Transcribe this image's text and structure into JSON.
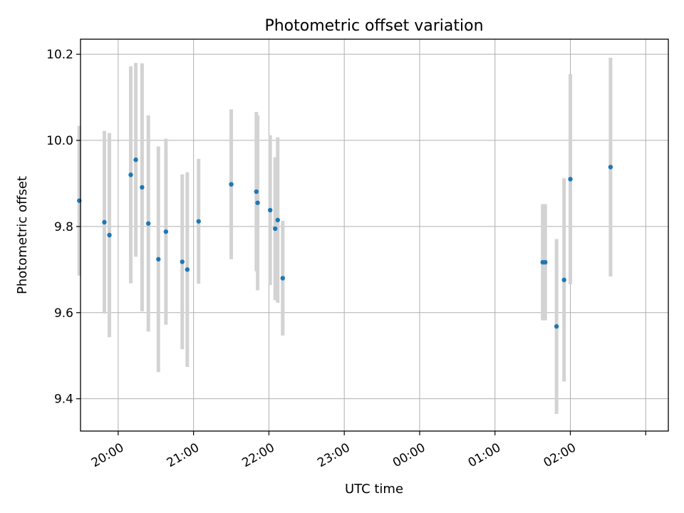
{
  "chart_data": {
    "type": "scatter",
    "title": "Photometric offset variation",
    "xlabel": "UTC time",
    "ylabel": "Photometric offset",
    "x_ticks": [
      "19:00",
      "20:00",
      "21:00",
      "22:00",
      "23:00",
      "00:00",
      "01:00",
      "02:00",
      "03:00"
    ],
    "x_tick_labels": [
      "20:00",
      "21:00",
      "22:00",
      "23:00",
      "00:00",
      "01:00",
      "02:00"
    ],
    "xlim": [
      "19:30",
      "03:18"
    ],
    "y_ticks": [
      9.4,
      9.6,
      9.8,
      10.0,
      10.2
    ],
    "y_tick_labels": [
      "9.4",
      "9.6",
      "9.8",
      "10.0",
      "10.2"
    ],
    "ylim": [
      9.325,
      10.235
    ],
    "grid": true,
    "colors": {
      "points": "#1f77b4",
      "errorbars": "#d3d3d3",
      "grid": "#b0b0b0"
    },
    "points": [
      {
        "t": "19:29:00",
        "y": 9.86,
        "yerr": 0.174
      },
      {
        "t": "19:49:00",
        "y": 9.81,
        "yerr": 0.212
      },
      {
        "t": "19:53:00",
        "y": 9.78,
        "yerr": 0.237
      },
      {
        "t": "20:10:00",
        "y": 9.92,
        "yerr": 0.252
      },
      {
        "t": "20:14:00",
        "y": 9.955,
        "yerr": 0.225
      },
      {
        "t": "20:19:00",
        "y": 9.891,
        "yerr": 0.288
      },
      {
        "t": "20:24:00",
        "y": 9.807,
        "yerr": 0.251
      },
      {
        "t": "20:32:00",
        "y": 9.724,
        "yerr": 0.262
      },
      {
        "t": "20:38:00",
        "y": 9.788,
        "yerr": 0.216
      },
      {
        "t": "20:51:00",
        "y": 9.718,
        "yerr": 0.203
      },
      {
        "t": "20:55:00",
        "y": 9.7,
        "yerr": 0.226
      },
      {
        "t": "21:04:00",
        "y": 9.812,
        "yerr": 0.145
      },
      {
        "t": "21:30:00",
        "y": 9.898,
        "yerr": 0.174
      },
      {
        "t": "21:50:00",
        "y": 9.881,
        "yerr": 0.185
      },
      {
        "t": "21:51:00",
        "y": 9.855,
        "yerr": 0.203
      },
      {
        "t": "22:01:00",
        "y": 9.838,
        "yerr": 0.174
      },
      {
        "t": "22:05:00",
        "y": 9.795,
        "yerr": 0.166
      },
      {
        "t": "22:07:00",
        "y": 9.815,
        "yerr": 0.192
      },
      {
        "t": "22:11:00",
        "y": 9.68,
        "yerr": 0.133
      },
      {
        "t": "01:38:00",
        "y": 9.717,
        "yerr": 0.135
      },
      {
        "t": "01:40:00",
        "y": 9.717,
        "yerr": 0.135
      },
      {
        "t": "01:49:00",
        "y": 9.568,
        "yerr": 0.203
      },
      {
        "t": "01:55:00",
        "y": 9.676,
        "yerr": 0.236
      },
      {
        "t": "02:00:00",
        "y": 9.91,
        "yerr": 0.244
      },
      {
        "t": "02:32:00",
        "y": 9.938,
        "yerr": 0.254
      }
    ]
  }
}
